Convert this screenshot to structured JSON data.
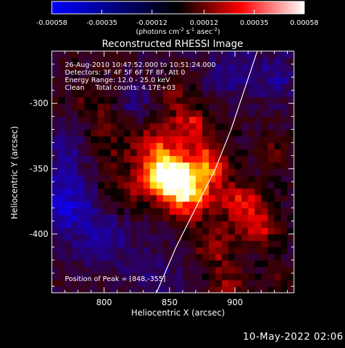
{
  "chart_data": {
    "type": "heatmap",
    "title": "Reconstructed RHESSI Image",
    "xlabel": "Heliocentric X (arcsec)",
    "ylabel": "Heliocentric Y (arcsec)",
    "xlim": [
      760,
      945
    ],
    "ylim": [
      -445,
      -260
    ],
    "xticks": [
      800,
      850,
      900
    ],
    "yticks": [
      -300,
      -350,
      -400
    ],
    "colorbar": {
      "ticks": [
        -0.00058,
        -0.00035,
        -0.00012,
        0.00012,
        0.00035,
        0.00058
      ],
      "tick_labels": [
        "-0.00058",
        "-0.00035",
        "-0.00012",
        "0.00012",
        "0.00035",
        "0.00058"
      ],
      "label_parts": [
        "(photons cm",
        "-2",
        " s",
        "-1",
        " asec",
        "-2",
        ")"
      ],
      "colors": {
        "min": "#0000ff",
        "mid": "#000000",
        "red": "#ff0000",
        "max": "#ffffff"
      }
    },
    "annotations": [
      "26-Aug-2010 10:47:52.000 to 10:51:24.000",
      "Detectors: 3F 4F 5F 6F 7F 8F, Att 0",
      "Energy Range: 12.0 - 25.0 keV",
      "Clean     Total counts: 4.17E+03"
    ],
    "peak_label": "Position of Peak = [848,-355]",
    "peak": {
      "x": 848,
      "y": -355,
      "value": 0.00058
    },
    "limb_curve": [
      [
        840,
        -445
      ],
      [
        855,
        -410
      ],
      [
        870,
        -380
      ],
      [
        885,
        -350
      ],
      [
        897,
        -320
      ],
      [
        907,
        -290
      ],
      [
        917,
        -260
      ]
    ],
    "sources": [
      {
        "x": 848,
        "y": -355,
        "value": 0.00058,
        "width": 13
      },
      {
        "x": 865,
        "y": -370,
        "value": 0.00045,
        "width": 14
      },
      {
        "x": 880,
        "y": -345,
        "value": 0.00038,
        "width": 12
      },
      {
        "x": 868,
        "y": -315,
        "value": 0.0003,
        "width": 11
      },
      {
        "x": 840,
        "y": -330,
        "value": 0.00028,
        "width": 14
      },
      {
        "x": 905,
        "y": -375,
        "value": 0.00033,
        "width": 12
      },
      {
        "x": 920,
        "y": -395,
        "value": 0.00028,
        "width": 11
      },
      {
        "x": 885,
        "y": -410,
        "value": 0.00026,
        "width": 12
      },
      {
        "x": 895,
        "y": -440,
        "value": 0.00024,
        "width": 10
      },
      {
        "x": 815,
        "y": -365,
        "value": 0.0002,
        "width": 13
      },
      {
        "x": 800,
        "y": -330,
        "value": 0.00018,
        "width": 14
      },
      {
        "x": 790,
        "y": -300,
        "value": 0.00016,
        "width": 14
      },
      {
        "x": 852,
        "y": -292,
        "value": 0.00016,
        "width": 11
      },
      {
        "x": 930,
        "y": -335,
        "value": 0.00016,
        "width": 10
      },
      {
        "x": 935,
        "y": -435,
        "value": 0.00014,
        "width": 10
      },
      {
        "x": 770,
        "y": -375,
        "value": -0.0003,
        "width": 18
      },
      {
        "x": 800,
        "y": -405,
        "value": -0.00018,
        "width": 16
      },
      {
        "x": 775,
        "y": -330,
        "value": -0.0002,
        "width": 14
      },
      {
        "x": 825,
        "y": -300,
        "value": -0.00016,
        "width": 12
      },
      {
        "x": 900,
        "y": -275,
        "value": -0.00018,
        "width": 15
      },
      {
        "x": 935,
        "y": -280,
        "value": -0.00016,
        "width": 12
      },
      {
        "x": 840,
        "y": -430,
        "value": -0.00012,
        "width": 14
      }
    ]
  }
}
